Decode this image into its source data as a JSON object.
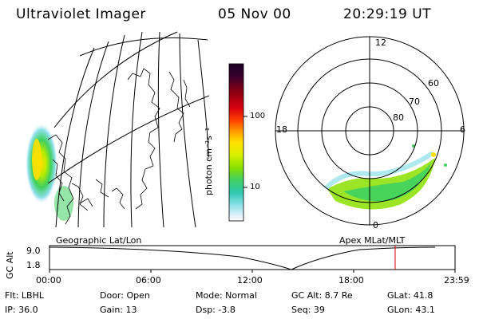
{
  "header": {
    "instrument": "Ultraviolet Imager",
    "date": "05 Nov 00",
    "time": "20:29:19 UT"
  },
  "colorbar": {
    "unit_label": "photon cm⁻²s⁻¹",
    "ticks": [
      "100",
      "10"
    ],
    "colors": [
      "#1a0022",
      "#3a0030",
      "#8a0010",
      "#d80010",
      "#ff4000",
      "#ff9b00",
      "#ffe000",
      "#d8f000",
      "#8be000",
      "#3fd060",
      "#2ec8b0",
      "#8ce0e8",
      "#d8f0f8",
      "#ffffff"
    ]
  },
  "polar_plot": {
    "mlt_labels": {
      "top": "12",
      "left": "18",
      "right": "6",
      "bottom": "0"
    },
    "lat_labels": [
      "60",
      "70",
      "80"
    ]
  },
  "timeline": {
    "left_title": "Geographic Lat/Lon",
    "right_title": "Apex MLat/MLT",
    "yaxis_label": "GC Alt",
    "y_ticks": [
      "9.0",
      "1.8"
    ],
    "x_ticks": [
      "00:00",
      "06:00",
      "12:00",
      "18:00",
      "23:59"
    ],
    "marker_color": "#e00000"
  },
  "info": {
    "row1": {
      "flt": "Flt: LBHL",
      "door": "Door: Open",
      "mode": "Mode: Normal",
      "gcalt": "GC Alt: 8.7 Re",
      "glat": "GLat:  41.8"
    },
    "row2": {
      "ip": "IP: 36.0",
      "gain": "Gain: 13",
      "dsp": "Dsp:    -3.8",
      "seq": "Seq: 39",
      "glon": "GLon:  43.1"
    }
  }
}
